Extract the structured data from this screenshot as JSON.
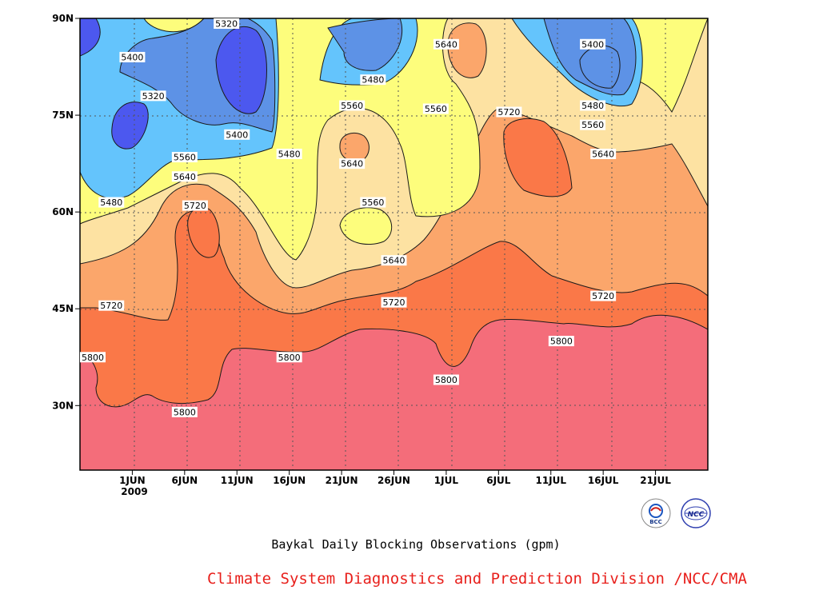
{
  "caption": "Baykal Daily Blocking Observations (gpm)",
  "credit": "Climate System Diagnostics and Prediction Division /NCC/CMA",
  "logos": {
    "left_text": "BCC",
    "right_text": "NCC"
  },
  "colors": {
    "lt5320": "#3b3bf0",
    "c5320": "#4c58ef",
    "c5400": "#5d92e6",
    "c5480": "#64c4fc",
    "c5560": "#fdfd7c",
    "c5640": "#fde2a2",
    "c5720": "#fba66b",
    "c5800": "#fa7848",
    "gt5800": "#f46d7a",
    "credit_red": "#e8201c"
  },
  "chart_data": {
    "type": "contour",
    "xlabel": "",
    "ylabel": "",
    "x_ticks": [
      "1JUN",
      "6JUN",
      "11JUN",
      "16JUN",
      "21JUN",
      "26JUN",
      "1JUL",
      "6JUL",
      "11JUL",
      "16JUL",
      "21JUL"
    ],
    "x_year_label": "2009",
    "y_ticks": [
      "90N",
      "75N",
      "60N",
      "45N",
      "30N"
    ],
    "ylim": [
      20,
      90
    ],
    "x_range": [
      "27MAY",
      "26JUL"
    ],
    "contour_levels": [
      5320,
      5400,
      5480,
      5560,
      5640,
      5720,
      5800
    ],
    "unit": "gpm",
    "grid": "dotted",
    "contour_labels": [
      {
        "text": "5320",
        "date": "10JUN",
        "lat": 90
      },
      {
        "text": "5400",
        "date": "1JUN",
        "lat": 84
      },
      {
        "text": "5320",
        "date": "3JUN",
        "lat": 78
      },
      {
        "text": "5400",
        "date": "11JUN",
        "lat": 72
      },
      {
        "text": "5480",
        "date": "16JUN",
        "lat": 69
      },
      {
        "text": "5560",
        "date": "6JUN",
        "lat": 68.5
      },
      {
        "text": "5640",
        "date": "6JUN",
        "lat": 65.5
      },
      {
        "text": "5480",
        "date": "30MAY",
        "lat": 61.5
      },
      {
        "text": "5720",
        "date": "7JUN",
        "lat": 61
      },
      {
        "text": "5480",
        "date": "24JUN",
        "lat": 80.5
      },
      {
        "text": "5560",
        "date": "22JUN",
        "lat": 76.5
      },
      {
        "text": "5640",
        "date": "22JUN",
        "lat": 67.5
      },
      {
        "text": "5560",
        "date": "24JUN",
        "lat": 61.5
      },
      {
        "text": "5560",
        "date": "30JUN",
        "lat": 76
      },
      {
        "text": "5640",
        "date": "1JUL",
        "lat": 86
      },
      {
        "text": "5720",
        "date": "7JUL",
        "lat": 75.5
      },
      {
        "text": "5400",
        "date": "15JUL",
        "lat": 86
      },
      {
        "text": "5480",
        "date": "15JUL",
        "lat": 76.5
      },
      {
        "text": "5560",
        "date": "15JUL",
        "lat": 73.5
      },
      {
        "text": "5640",
        "date": "16JUL",
        "lat": 69
      },
      {
        "text": "5640",
        "date": "26JUN",
        "lat": 52.5
      },
      {
        "text": "5720",
        "date": "26JUN",
        "lat": 46
      },
      {
        "text": "5720",
        "date": "30MAY",
        "lat": 45.5
      },
      {
        "text": "5720",
        "date": "16JUL",
        "lat": 47
      },
      {
        "text": "5800",
        "date": "27MAY",
        "lat": 37.5
      },
      {
        "text": "5800",
        "date": "16JUN",
        "lat": 37.5
      },
      {
        "text": "5800",
        "date": "1JUL",
        "lat": 34
      },
      {
        "text": "5800",
        "date": "12JUL",
        "lat": 40
      },
      {
        "text": "5800",
        "date": "6JUN",
        "lat": 29
      }
    ]
  }
}
